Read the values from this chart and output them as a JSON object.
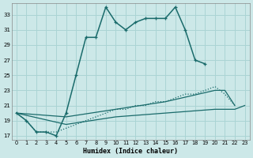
{
  "xlabel": "Humidex (Indice chaleur)",
  "background_color": "#cce8e8",
  "grid_color": "#aad4d4",
  "line_color": "#1a6b6b",
  "xlim": [
    -0.5,
    23.5
  ],
  "ylim": [
    16.5,
    34.5
  ],
  "yticks": [
    17,
    19,
    21,
    23,
    25,
    27,
    29,
    31,
    33
  ],
  "xticks": [
    0,
    1,
    2,
    3,
    4,
    5,
    6,
    7,
    8,
    9,
    10,
    11,
    12,
    13,
    14,
    15,
    16,
    17,
    18,
    19,
    20,
    21,
    22,
    23
  ],
  "series1_x": [
    0,
    1,
    2,
    3,
    4,
    5,
    6,
    7,
    8,
    9,
    10,
    11,
    12,
    13,
    14,
    15,
    16,
    17,
    18,
    19
  ],
  "series1_y": [
    20.0,
    19.0,
    17.5,
    17.5,
    17.0,
    20.0,
    25.0,
    30.0,
    30.0,
    34.0,
    32.0,
    31.0,
    32.0,
    32.5,
    32.5,
    32.5,
    34.0,
    31.0,
    27.0,
    26.5
  ],
  "series2_x": [
    0,
    1,
    2,
    3,
    4,
    5,
    6,
    7,
    8,
    9,
    10,
    11,
    12,
    13,
    14,
    15,
    16,
    17,
    18,
    19,
    20,
    21,
    22
  ],
  "series2_y": [
    20.0,
    19.0,
    17.5,
    17.5,
    17.5,
    18.0,
    18.5,
    19.0,
    19.5,
    20.0,
    20.5,
    20.5,
    21.0,
    21.0,
    21.5,
    21.5,
    22.0,
    22.5,
    22.5,
    23.0,
    23.5,
    22.5,
    21.0
  ],
  "series3_x": [
    0,
    5,
    10,
    15,
    20,
    21,
    22
  ],
  "series3_y": [
    20.0,
    19.5,
    20.5,
    21.5,
    23.0,
    23.0,
    21.0
  ],
  "series4_x": [
    0,
    5,
    10,
    15,
    20,
    22,
    23
  ],
  "series4_y": [
    20.0,
    18.5,
    19.5,
    20.0,
    20.5,
    20.5,
    21.0
  ]
}
